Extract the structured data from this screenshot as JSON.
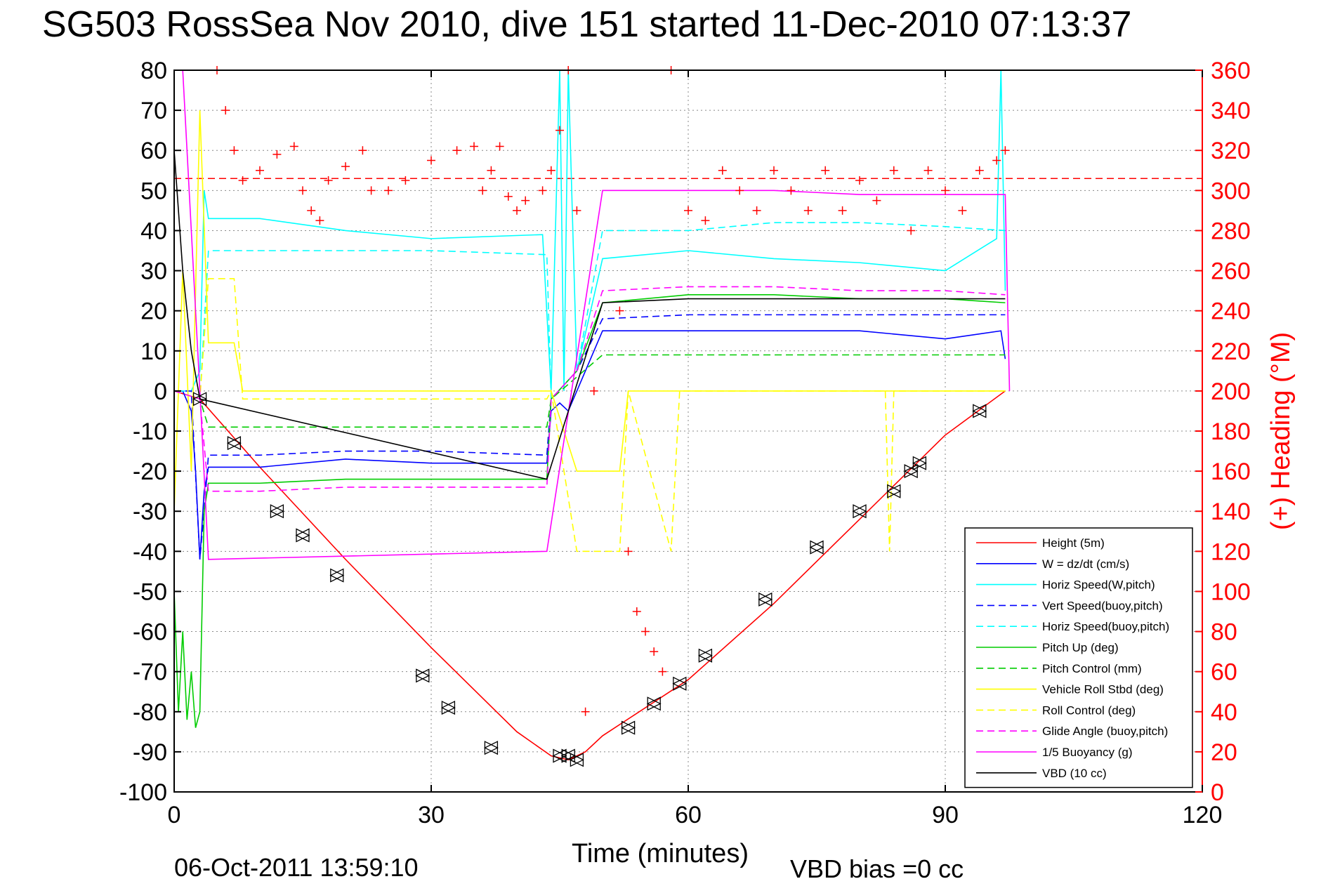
{
  "chart_data": {
    "type": "line",
    "title": "SG503 RossSea Nov 2010, dive 151 started 11-Dec-2010 07:13:37",
    "xlabel": "Time (minutes)",
    "ylabel": "",
    "ylabel_right": "(+) Heading (°M)",
    "xlim": [
      0,
      120
    ],
    "ylim": [
      -100,
      80
    ],
    "ylim_right": [
      0,
      360
    ],
    "x_ticks": [
      0,
      30,
      60,
      90,
      120
    ],
    "y_ticks": [
      80,
      70,
      60,
      50,
      40,
      30,
      20,
      10,
      0,
      -10,
      -20,
      -30,
      -40,
      -50,
      -60,
      -70,
      -80,
      -90,
      -100
    ],
    "y_ticks_right": [
      360,
      340,
      320,
      300,
      280,
      260,
      240,
      220,
      200,
      180,
      160,
      140,
      120,
      100,
      80,
      60,
      40,
      20,
      0
    ],
    "grid": true,
    "legend_position": "bottom-right",
    "footer_left": "06-Oct-2011 13:59:10",
    "footer_right": "VBD bias =0 cc",
    "heading_reference": 306,
    "series": [
      {
        "name": "Height (5m)",
        "color": "#ff0000",
        "style": "solid",
        "x": [
          0,
          3,
          10,
          20,
          30,
          40,
          44,
          46,
          48,
          50,
          60,
          70,
          80,
          90,
          97
        ],
        "y": [
          0,
          -2,
          -19,
          -42,
          -64,
          -85,
          -91,
          -92,
          -90,
          -86,
          -72,
          -53,
          -32,
          -11,
          0
        ]
      },
      {
        "name": "W = dz/dt (cm/s)",
        "color": "#0000ff",
        "style": "solid",
        "x": [
          0,
          1,
          2,
          2.5,
          3,
          3.5,
          4,
          10,
          20,
          30,
          43.5,
          44,
          45,
          46,
          47,
          50,
          60,
          70,
          80,
          90,
          96.5,
          97
        ],
        "y": [
          0,
          0,
          -5,
          -20,
          -42,
          -25,
          -19,
          -19,
          -17,
          -18,
          -18,
          -5,
          -3,
          -5,
          0,
          15,
          15,
          15,
          15,
          13,
          15,
          8
        ]
      },
      {
        "name": "Horiz Speed(W,pitch)",
        "color": "#00ffff",
        "style": "solid",
        "x": [
          0,
          2,
          3,
          3.5,
          4,
          10,
          20,
          30,
          43,
          44,
          45,
          45.5,
          46,
          47,
          50,
          60,
          70,
          80,
          90,
          96,
          96.5,
          97
        ],
        "y": [
          0,
          0,
          5,
          50,
          43,
          43,
          40,
          38,
          39,
          0,
          80,
          0,
          80,
          5,
          33,
          35,
          33,
          32,
          30,
          38,
          80,
          25
        ]
      },
      {
        "name": "Vert Speed(buoy,pitch)",
        "color": "#0000ff",
        "style": "dashed",
        "x": [
          0,
          2,
          3,
          3.5,
          4,
          10,
          20,
          30,
          43.5,
          44,
          47,
          50,
          60,
          70,
          80,
          90,
          97
        ],
        "y": [
          0,
          0,
          -42,
          -30,
          -16,
          -16,
          -15,
          -15,
          -16,
          -2,
          5,
          18,
          19,
          19,
          19,
          19,
          19
        ]
      },
      {
        "name": "Horiz Speed(buoy,pitch)",
        "color": "#00ffff",
        "style": "dashed",
        "x": [
          0,
          3,
          4,
          10,
          20,
          30,
          43.5,
          44,
          47,
          50,
          60,
          70,
          80,
          90,
          97
        ],
        "y": [
          0,
          -2,
          35,
          35,
          35,
          35,
          34,
          -2,
          5,
          40,
          40,
          42,
          42,
          41,
          40
        ]
      },
      {
        "name": "Pitch Up (deg)",
        "color": "#00cc00",
        "style": "solid",
        "x": [
          0,
          0.5,
          1,
          1.5,
          2,
          2.5,
          3,
          3.5,
          4,
          10,
          20,
          30,
          43.5,
          44,
          47,
          50,
          60,
          70,
          80,
          90,
          97
        ],
        "y": [
          -50,
          -80,
          -60,
          -82,
          -70,
          -84,
          -80,
          -30,
          -23,
          -23,
          -22,
          -22,
          -22,
          -2,
          5,
          22,
          24,
          24,
          23,
          23,
          22
        ]
      },
      {
        "name": "Pitch Control (mm)",
        "color": "#00cc00",
        "style": "dashed",
        "x": [
          0,
          3,
          4,
          43.5,
          44,
          50,
          97
        ],
        "y": [
          0,
          -2,
          -9,
          -9,
          -2,
          9,
          9
        ]
      },
      {
        "name": "Vehicle Roll Stbd (deg)",
        "color": "#ffff00",
        "style": "solid",
        "x": [
          0,
          1,
          2,
          3,
          4,
          7,
          8,
          30,
          43.5,
          44,
          47,
          52,
          53,
          58,
          59,
          97
        ],
        "y": [
          -30,
          30,
          -20,
          70,
          12,
          12,
          0,
          0,
          0,
          0,
          -20,
          -20,
          0,
          0,
          0,
          0
        ]
      },
      {
        "name": "Roll Control (deg)",
        "color": "#ffff00",
        "style": "dashed",
        "x": [
          0,
          3,
          4,
          7,
          8,
          43.5,
          44,
          47,
          50,
          52,
          53,
          58,
          59,
          70,
          83,
          83.5,
          84,
          97
        ],
        "y": [
          0,
          -2,
          28,
          28,
          -2,
          -2,
          0,
          -40,
          -40,
          -40,
          0,
          -40,
          0,
          0,
          0,
          -40,
          0,
          0
        ]
      },
      {
        "name": "Glide Angle (buoy,pitch)",
        "color": "#ff00ff",
        "style": "dashed",
        "x": [
          0,
          3,
          4,
          10,
          20,
          30,
          43.5,
          44,
          47,
          50,
          60,
          70,
          80,
          90,
          97
        ],
        "y": [
          0,
          -2,
          -25,
          -25,
          -24,
          -24,
          -24,
          -2,
          5,
          25,
          26,
          26,
          25,
          25,
          24
        ]
      },
      {
        "name": "1/5 Buoyancy (g)",
        "color": "#ff00ff",
        "style": "solid",
        "x": [
          0,
          1,
          3,
          4,
          43.5,
          50,
          60,
          70,
          80,
          90,
          97,
          97.5
        ],
        "y": [
          80,
          80,
          0,
          -42,
          -40,
          50,
          50,
          50,
          49,
          49,
          49,
          0
        ]
      },
      {
        "name": "VBD (10 cc)",
        "color": "#000000",
        "style": "solid",
        "x": [
          0,
          1,
          2,
          3,
          43.5,
          50,
          60,
          70,
          80,
          90,
          97
        ],
        "y": [
          60,
          30,
          10,
          -2,
          -22,
          22,
          23,
          23,
          23,
          23,
          23
        ]
      },
      {
        "name": "",
        "color": "#000000",
        "style": "markers-triangle",
        "x": [
          3,
          7,
          12,
          15,
          19,
          29,
          32,
          37,
          45,
          46,
          47,
          53,
          56,
          59,
          62,
          69,
          75,
          80,
          84,
          86,
          87,
          94
        ],
        "y": [
          -2,
          -13,
          -30,
          -36,
          -46,
          -71,
          -79,
          -89,
          -91,
          -91,
          -92,
          -84,
          -78,
          -73,
          -66,
          -52,
          -39,
          -30,
          -25,
          -20,
          -18,
          -5
        ]
      },
      {
        "name": "",
        "color": "#ff0000",
        "style": "markers-plus",
        "axis": "right",
        "x": [
          5,
          6,
          7,
          8,
          10,
          12,
          14,
          15,
          16,
          17,
          18,
          20,
          22,
          23,
          25,
          27,
          30,
          33,
          35,
          36,
          37,
          38,
          39,
          40,
          41,
          43,
          44,
          45,
          46,
          47,
          48,
          49,
          52,
          53,
          54,
          55,
          56,
          57,
          58,
          60,
          62,
          64,
          66,
          68,
          70,
          72,
          74,
          76,
          78,
          80,
          82,
          84,
          86,
          88,
          90,
          92,
          94,
          96,
          97
        ],
        "y": [
          360,
          340,
          320,
          305,
          310,
          318,
          322,
          300,
          290,
          285,
          305,
          312,
          320,
          300,
          300,
          305,
          315,
          320,
          322,
          300,
          310,
          322,
          297,
          290,
          295,
          300,
          310,
          330,
          360,
          290,
          40,
          200,
          240,
          120,
          90,
          80,
          70,
          60,
          360,
          290,
          285,
          310,
          300,
          290,
          310,
          300,
          290,
          310,
          290,
          305,
          295,
          310,
          280,
          310,
          300,
          290,
          310,
          315,
          320
        ]
      }
    ]
  }
}
